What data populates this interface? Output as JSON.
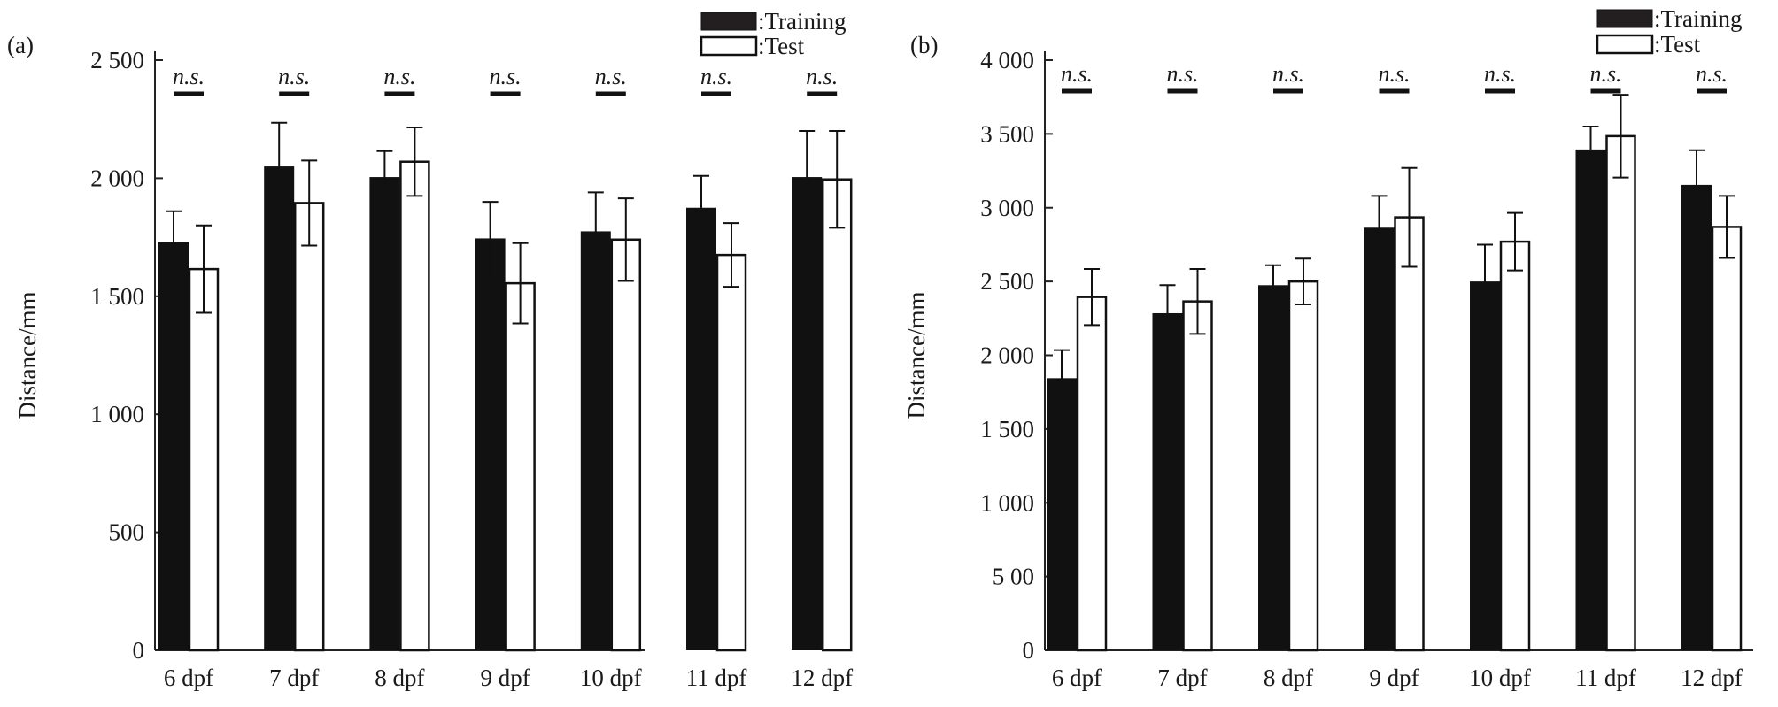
{
  "chart_data": [
    {
      "type": "bar",
      "panel_label": "(a)",
      "ylabel": "Distance/mm",
      "ylim": [
        0,
        2500
      ],
      "yticks": [
        0,
        500,
        1000,
        1500,
        2000,
        2500
      ],
      "ytick_labels": [
        "0",
        "500",
        "1 000",
        "1 500",
        "2 000",
        "2 500"
      ],
      "categories": [
        "6 dpf",
        "7 dpf",
        "8 dpf",
        "9 dpf",
        "10 dpf",
        "11 dpf",
        "12 dpf"
      ],
      "significance": [
        "n.s.",
        "n.s.",
        "n.s.",
        "n.s.",
        "n.s.",
        "n.s.",
        "n.s."
      ],
      "series": [
        {
          "name": ":Training",
          "color": "#111111",
          "values": [
            1730,
            2050,
            2005,
            1745,
            1775,
            1875,
            2005
          ],
          "errors": [
            130,
            185,
            110,
            155,
            165,
            135,
            195
          ]
        },
        {
          "name": ":Test",
          "color": "#ffffff",
          "values": [
            1615,
            1895,
            2070,
            1555,
            1740,
            1675,
            1995
          ],
          "errors": [
            185,
            180,
            145,
            170,
            175,
            135,
            205
          ]
        }
      ],
      "legend": "top-right"
    },
    {
      "type": "bar",
      "panel_label": "(b)",
      "ylabel": "Distance/mm",
      "ylim": [
        0,
        4000
      ],
      "yticks": [
        0,
        500,
        1000,
        1500,
        2000,
        2500,
        3000,
        3500,
        4000
      ],
      "ytick_labels": [
        "0",
        "5 00",
        "1 000",
        "1 500",
        "2 000",
        "2 500",
        "3 000",
        "3 500",
        "4 000"
      ],
      "categories": [
        "6 dpf",
        "7 dpf",
        "8 dpf",
        "9 dpf",
        "10 dpf",
        "11 dpf",
        "12 dpf"
      ],
      "significance": [
        "n.s.",
        "n.s.",
        "n.s.",
        "n.s.",
        "n.s.",
        "n.s.",
        "n.s."
      ],
      "series": [
        {
          "name": ":Training",
          "color": "#111111",
          "values": [
            1845,
            2285,
            2475,
            2865,
            2500,
            3395,
            3155
          ],
          "errors": [
            190,
            190,
            135,
            215,
            250,
            155,
            235
          ]
        },
        {
          "name": ":Test",
          "color": "#ffffff",
          "values": [
            2395,
            2365,
            2500,
            2935,
            2770,
            3485,
            2870
          ],
          "errors": [
            190,
            220,
            155,
            335,
            195,
            280,
            210
          ]
        }
      ],
      "legend": "top-right"
    }
  ]
}
